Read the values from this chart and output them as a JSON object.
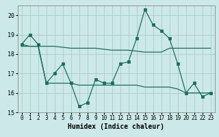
{
  "xlabel": "Humidex (Indice chaleur)",
  "bg_color": "#cce8e8",
  "grid_color": "#aacccc",
  "line_color": "#1a6b5a",
  "xlim": [
    -0.5,
    23.5
  ],
  "ylim": [
    15,
    20.5
  ],
  "yticks": [
    15,
    16,
    17,
    18,
    19,
    20
  ],
  "xticks": [
    0,
    1,
    2,
    3,
    4,
    5,
    6,
    7,
    8,
    9,
    10,
    11,
    12,
    13,
    14,
    15,
    16,
    17,
    18,
    19,
    20,
    21,
    22,
    23
  ],
  "series1_x": [
    0,
    1,
    2,
    3,
    4,
    5,
    6,
    7,
    8,
    9,
    10,
    11,
    12,
    13,
    14,
    15,
    16,
    17,
    18,
    19,
    20,
    21,
    22,
    23
  ],
  "series1_y": [
    18.5,
    19.0,
    18.5,
    16.5,
    17.0,
    17.5,
    16.5,
    15.3,
    15.5,
    16.7,
    16.5,
    16.5,
    17.5,
    17.6,
    18.8,
    20.3,
    19.5,
    19.2,
    18.8,
    17.5,
    16.0,
    16.5,
    15.8,
    16.0
  ],
  "series2_x": [
    0,
    1,
    2,
    3,
    4,
    5,
    6,
    7,
    8,
    9,
    10,
    11,
    12,
    13,
    14,
    15,
    16,
    17,
    18,
    19,
    20,
    21,
    22,
    23
  ],
  "series2_y": [
    18.4,
    18.4,
    18.4,
    18.4,
    18.4,
    18.35,
    18.3,
    18.3,
    18.3,
    18.3,
    18.25,
    18.2,
    18.2,
    18.2,
    18.15,
    18.1,
    18.1,
    18.1,
    18.3,
    18.3,
    18.3,
    18.3,
    18.3,
    18.3
  ],
  "series3_x": [
    0,
    1,
    2,
    3,
    4,
    5,
    6,
    7,
    8,
    9,
    10,
    11,
    12,
    13,
    14,
    15,
    16,
    17,
    18,
    19,
    20,
    21,
    22,
    23
  ],
  "series3_y": [
    18.5,
    18.4,
    18.4,
    16.5,
    16.5,
    16.5,
    16.5,
    16.4,
    16.4,
    16.4,
    16.4,
    16.4,
    16.4,
    16.4,
    16.4,
    16.3,
    16.3,
    16.3,
    16.3,
    16.2,
    16.0,
    16.0,
    16.0,
    16.0
  ],
  "xlabel_fontsize": 7,
  "tick_fontsize": 5.5,
  "ylabel_fontsize": 6
}
